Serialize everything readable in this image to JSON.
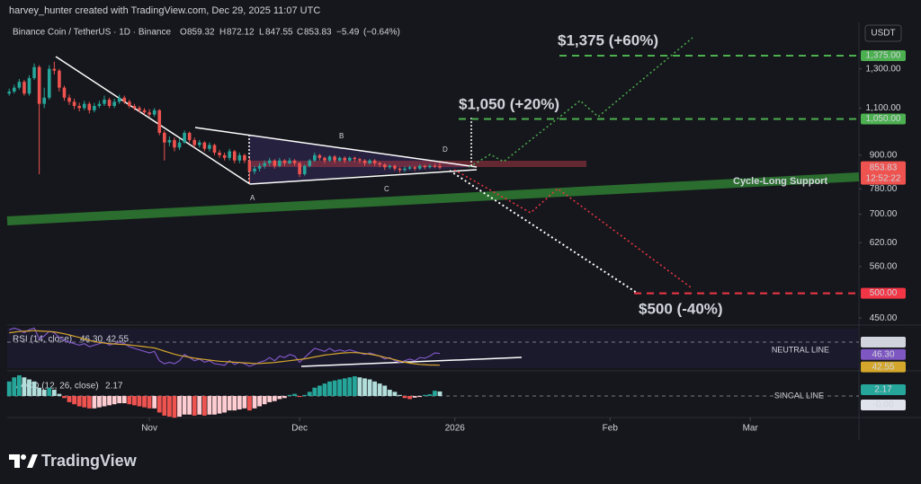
{
  "header": {
    "attribution": "harvey_hunter created with TradingView.com, Dec 29, 2025 11:07 UTC"
  },
  "chart_data": [
    {
      "type": "candlestick",
      "title": "Binance Coin / TetherUS · 1D · Binance",
      "currency": "USDT",
      "ohlc_letters": [
        "O",
        "H",
        "L",
        "C"
      ],
      "open": [
        1170,
        1180,
        1200,
        1230,
        1170,
        1250,
        1310,
        1120,
        1150,
        1300,
        1290,
        1200,
        1150,
        1130,
        1110,
        1100,
        1120,
        1090,
        1110,
        1120,
        1140,
        1110,
        1130,
        1150,
        1130,
        1110,
        1100,
        1090,
        1080,
        1070,
        1090,
        990,
        950,
        960,
        930,
        950,
        990,
        960,
        940,
        950,
        925,
        940,
        910,
        900,
        890,
        915,
        880,
        900,
        880,
        840,
        850,
        860,
        870,
        880,
        860,
        880,
        870,
        880,
        870,
        830,
        860,
        880,
        900,
        890,
        880,
        895,
        880,
        890,
        880,
        890,
        885,
        880,
        870,
        880,
        870,
        865,
        855,
        860,
        850,
        845,
        850,
        855,
        850,
        860,
        855,
        860,
        859.32
      ],
      "high": [
        1195,
        1215,
        1245,
        1240,
        1265,
        1330,
        1320,
        1200,
        1320,
        1340,
        1300,
        1210,
        1165,
        1145,
        1125,
        1135,
        1130,
        1125,
        1135,
        1160,
        1150,
        1145,
        1165,
        1160,
        1140,
        1120,
        1110,
        1100,
        1095,
        1100,
        1095,
        1000,
        975,
        970,
        965,
        1000,
        995,
        970,
        960,
        955,
        950,
        945,
        920,
        910,
        925,
        920,
        910,
        905,
        890,
        860,
        870,
        880,
        890,
        885,
        890,
        885,
        890,
        885,
        875,
        865,
        885,
        910,
        905,
        895,
        900,
        900,
        895,
        895,
        895,
        895,
        890,
        885,
        885,
        885,
        875,
        870,
        865,
        865,
        855,
        858,
        862,
        860,
        866,
        864,
        866,
        868,
        872.12
      ],
      "low": [
        1160,
        1170,
        1190,
        1160,
        1160,
        1240,
        830,
        1100,
        1140,
        1270,
        1180,
        1135,
        1115,
        1095,
        1085,
        1090,
        1075,
        1080,
        1100,
        1110,
        1100,
        1100,
        1120,
        1120,
        1100,
        1090,
        1080,
        1070,
        1060,
        1060,
        980,
        880,
        935,
        915,
        920,
        945,
        950,
        930,
        930,
        915,
        915,
        900,
        890,
        880,
        880,
        870,
        870,
        870,
        800,
        830,
        840,
        850,
        860,
        850,
        855,
        860,
        865,
        860,
        820,
        825,
        855,
        875,
        880,
        870,
        875,
        870,
        875,
        870,
        875,
        875,
        870,
        860,
        865,
        860,
        855,
        845,
        848,
        842,
        835,
        838,
        845,
        842,
        845,
        848,
        850,
        852,
        847.55
      ],
      "close": [
        1180,
        1200,
        1230,
        1170,
        1250,
        1310,
        1120,
        1150,
        1300,
        1290,
        1200,
        1150,
        1130,
        1110,
        1100,
        1120,
        1090,
        1110,
        1120,
        1140,
        1110,
        1130,
        1150,
        1130,
        1110,
        1100,
        1090,
        1080,
        1070,
        1090,
        990,
        950,
        960,
        930,
        950,
        990,
        960,
        940,
        950,
        925,
        940,
        910,
        900,
        890,
        915,
        880,
        900,
        880,
        840,
        850,
        860,
        870,
        880,
        860,
        880,
        870,
        880,
        870,
        830,
        860,
        880,
        900,
        890,
        880,
        895,
        880,
        890,
        880,
        890,
        885,
        880,
        870,
        880,
        870,
        865,
        855,
        860,
        850,
        845,
        850,
        855,
        850,
        860,
        855,
        860,
        859.32,
        853.83
      ],
      "up_color": "#26a69a",
      "down_color": "#ef5350",
      "change": {
        "value": -5.49,
        "label": "−5.49"
      },
      "change_pct": {
        "value": -0.64,
        "label": "(−0.64%)"
      },
      "countdown": "12:52:22",
      "log_scale": true,
      "ylim": [
        440,
        1554
      ],
      "yticks": [
        {
          "value": 1300,
          "label": "1,300.00"
        },
        {
          "value": 1100,
          "label": "1,100.00"
        },
        {
          "value": 900,
          "label": "900.00"
        },
        {
          "value": 780,
          "label": "780.00"
        },
        {
          "value": 700,
          "label": "700.00"
        },
        {
          "value": 620,
          "label": "620.00"
        },
        {
          "value": 560,
          "label": "560.00"
        },
        {
          "value": 450,
          "label": "450.00"
        }
      ],
      "xlim": [
        -0.4,
        169.7
      ],
      "xticks": [
        {
          "value": 28,
          "label": "Nov"
        },
        {
          "value": 58,
          "label": "Dec"
        },
        {
          "value": 89,
          "label": "2026"
        },
        {
          "value": 120,
          "label": "Feb"
        },
        {
          "value": 148,
          "label": "Mar"
        }
      ],
      "levels": [
        {
          "price": {
            "value": 1375,
            "label": "1,375.00"
          },
          "text": "$1,375 (+60%)",
          "color": "#4caf50"
        },
        {
          "price": {
            "value": 1050,
            "label": "1,050.00"
          },
          "text": "$1,050 (+20%)",
          "color": "#4caf50"
        },
        {
          "price": {
            "value": 500,
            "label": "500.00"
          },
          "text": "$500 (-40%)",
          "color": "#f23645"
        }
      ],
      "support_label": "Cycle-Long Support",
      "pattern_points": [
        "A",
        "B",
        "C",
        "D"
      ]
    },
    {
      "type": "line",
      "title": "RSI (14, close)",
      "ylim": [
        41,
        55.5
      ],
      "yticks": [
        {
          "value": 50,
          "label": "50.00"
        }
      ],
      "line_label": "NEUTRAL LINE",
      "series": [
        {
          "color": "#7e57c2",
          "values": [
            54,
            54.5,
            54,
            53,
            54,
            54.5,
            51,
            52,
            53.5,
            53,
            51.5,
            50.5,
            50,
            49.5,
            49,
            49.5,
            48.5,
            49,
            49.5,
            50,
            49,
            49.5,
            50,
            49.5,
            48.5,
            48,
            47.5,
            47,
            46.5,
            47,
            44,
            43,
            43.5,
            43,
            44,
            46,
            45,
            44,
            44.5,
            43.5,
            44,
            43,
            42.8,
            42.5,
            44,
            42.8,
            43.5,
            43,
            42.2,
            42.8,
            43.5,
            44,
            45,
            44,
            45.5,
            45,
            46,
            45.5,
            43.5,
            45,
            46.5,
            48,
            47.5,
            47,
            48,
            47,
            47.5,
            47,
            47.5,
            47,
            46.5,
            46,
            46.5,
            46,
            45.5,
            44.5,
            45,
            44,
            43.5,
            44,
            44.5,
            44,
            45,
            44.8,
            45.5,
            46.5,
            46.3
          ],
          "value_labels": [
            null,
            null,
            null,
            null,
            null,
            null,
            null,
            null,
            null,
            null,
            null,
            null,
            null,
            null,
            null,
            null,
            null,
            null,
            null,
            null,
            null,
            null,
            null,
            null,
            null,
            null,
            null,
            null,
            null,
            null,
            null,
            null,
            null,
            null,
            null,
            null,
            null,
            null,
            null,
            null,
            null,
            null,
            null,
            null,
            null,
            null,
            null,
            null,
            null,
            null,
            null,
            null,
            null,
            null,
            null,
            null,
            null,
            null,
            null,
            null,
            null,
            null,
            null,
            null,
            null,
            null,
            null,
            null,
            null,
            null,
            null,
            null,
            null,
            null,
            null,
            null,
            null,
            null,
            null,
            null,
            null,
            null,
            null,
            null,
            null,
            null,
            "46.30"
          ]
        },
        {
          "color": "#d4a72c",
          "values": [
            53,
            53.2,
            53.4,
            53.5,
            53.6,
            53.7,
            53.6,
            53.5,
            53.4,
            53.3,
            53,
            52.7,
            52.3,
            51.9,
            51.5,
            51,
            50.6,
            50.2,
            49.9,
            49.7,
            49.5,
            49.4,
            49.3,
            49.2,
            49.1,
            48.9,
            48.7,
            48.5,
            48.3,
            48.1,
            47.6,
            47.1,
            46.6,
            46.1,
            45.7,
            45.4,
            45.1,
            44.8,
            44.6,
            44.4,
            44.2,
            44,
            43.8,
            43.7,
            43.6,
            43.5,
            43.4,
            43.3,
            43.2,
            43.1,
            43.1,
            43.2,
            43.3,
            43.4,
            43.6,
            43.8,
            44,
            44.2,
            44.4,
            44.6,
            44.9,
            45.2,
            45.5,
            45.8,
            46,
            46.2,
            46.4,
            46.5,
            46.6,
            46.6,
            46.5,
            46.3,
            46.1,
            45.8,
            45.5,
            45.1,
            44.7,
            44.3,
            43.9,
            43.5,
            43.2,
            43,
            42.8,
            42.7,
            42.6,
            42.6,
            42.55
          ]
        }
      ]
    },
    {
      "type": "bar",
      "title": "MACD (12, 26, close)",
      "ylim": [
        -12.6,
        11.7
      ],
      "signal_label": "-0.00",
      "line_label": "SINGAL LINE",
      "colors": [
        "#26a69a",
        "#b2dfdb",
        "#ef5350",
        "#ffcdd2"
      ],
      "values": [
        7,
        9,
        10,
        9,
        8,
        7,
        4,
        3,
        4,
        3,
        1,
        -1,
        -3,
        -4,
        -5,
        -5.5,
        -6,
        -6,
        -5.5,
        -5,
        -4.5,
        -4,
        -3.5,
        -3.5,
        -4,
        -4.5,
        -5,
        -5.5,
        -6,
        -6,
        -8,
        -9.5,
        -10,
        -10.5,
        -10,
        -9,
        -9,
        -9.5,
        -9,
        -9.5,
        -9,
        -9,
        -8.5,
        -8,
        -7,
        -7,
        -6.5,
        -6,
        -7,
        -6,
        -5,
        -4,
        -3,
        -2.5,
        -1.5,
        -1,
        0.5,
        1,
        -0.5,
        0.5,
        2,
        4,
        5,
        6,
        7,
        7.5,
        8,
        8.5,
        9,
        9.5,
        9,
        8.5,
        8,
        7,
        6,
        5,
        3,
        2,
        0.5,
        -1,
        -1.5,
        -0.8,
        -0.5,
        0.5,
        0.8,
        2.5,
        2.17
      ]
    }
  ],
  "footer": {
    "brand": "TradingView"
  }
}
